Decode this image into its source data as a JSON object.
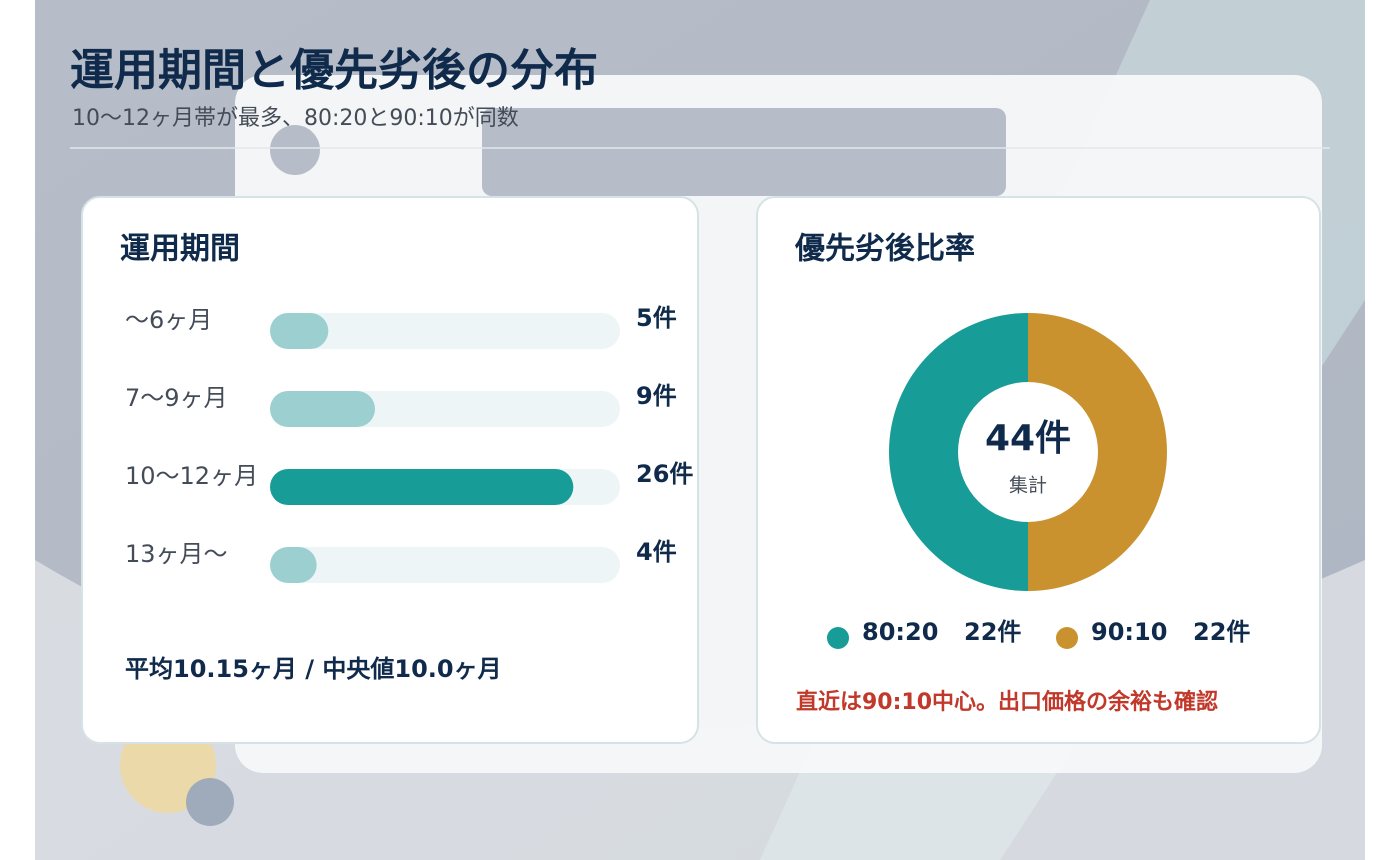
{
  "header": {
    "title": "運用期間と優先劣後の分布",
    "subtitle": "10〜12ヶ月帯が最多、80:20と90:10が同数"
  },
  "chart_data": [
    {
      "type": "bar",
      "orientation": "horizontal",
      "title": "運用期間",
      "categories": [
        "〜6ヶ月",
        "7〜9ヶ月",
        "10〜12ヶ月",
        "13ヶ月〜"
      ],
      "values": [
        5,
        9,
        26,
        4
      ],
      "value_labels": [
        "5件",
        "9件",
        "26件",
        "4件"
      ],
      "colors": [
        "#9ccfd0",
        "#9ccfd0",
        "#179c98",
        "#9ccfd0"
      ],
      "track_color": "#eef5f6",
      "xlim": [
        0,
        30
      ],
      "footnote": "平均10.15ヶ月 / 中央値10.0ヶ月"
    },
    {
      "type": "pie",
      "donut": true,
      "title": "優先劣後比率",
      "categories": [
        "80:20",
        "90:10"
      ],
      "values": [
        22,
        22
      ],
      "value_labels": [
        "22件",
        "22件"
      ],
      "colors": [
        "#179c98",
        "#c9922f"
      ],
      "center_label": "44件",
      "center_sublabel": "集計",
      "note": "直近は90:10中心。出口価格の余裕も確認"
    }
  ]
}
